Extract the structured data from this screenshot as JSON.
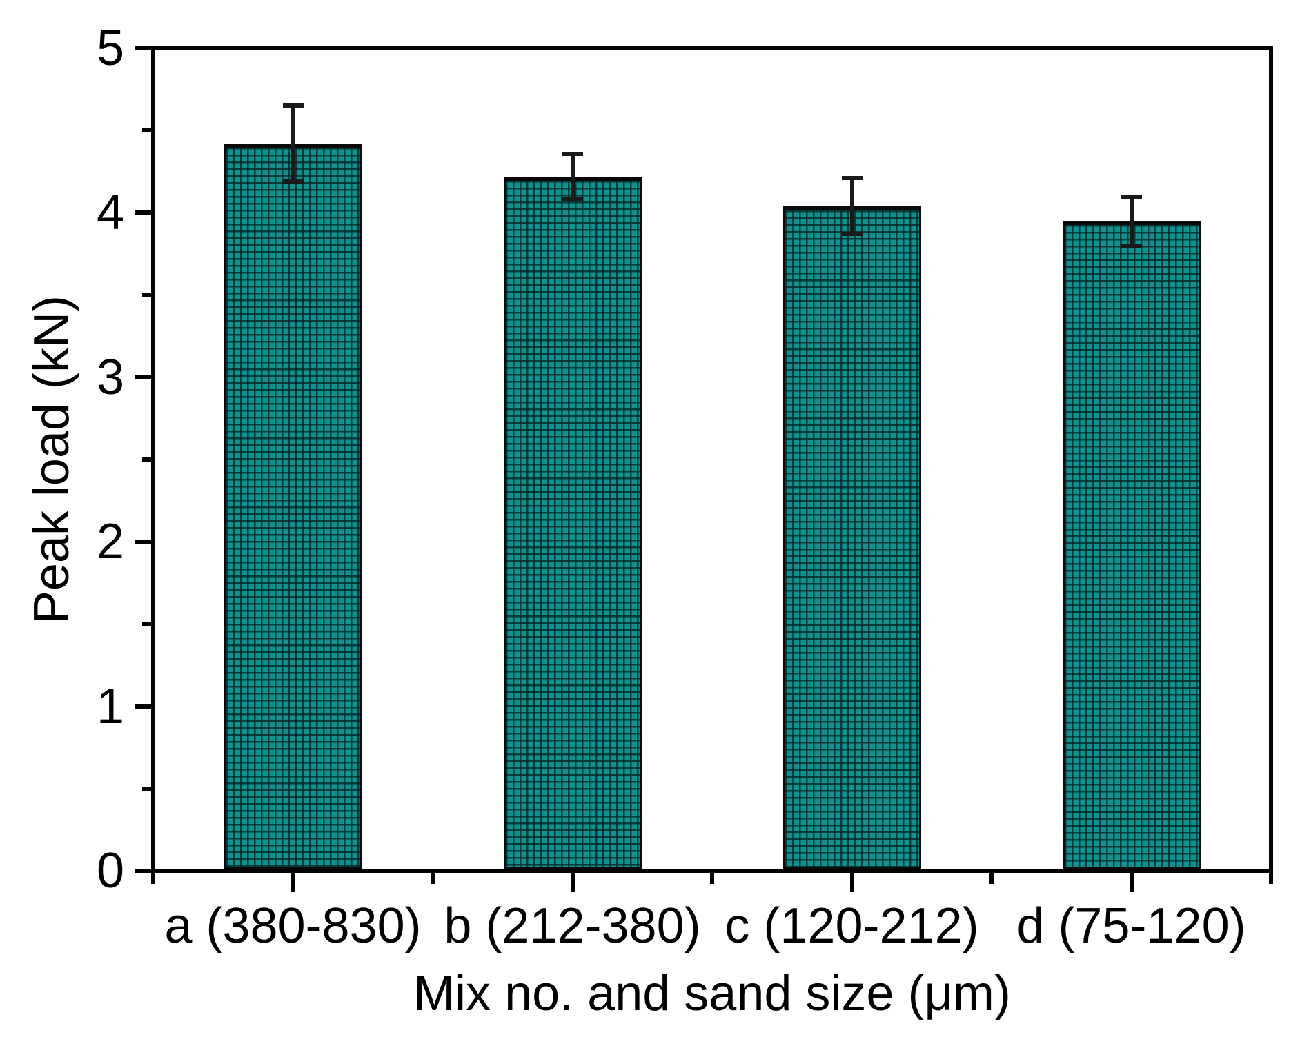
{
  "figure": {
    "background": "#ffffff"
  },
  "chart_data": {
    "type": "bar",
    "title": "",
    "xlabel": "Mix no. and sand size (μm)",
    "ylabel": "Peak load (kN)",
    "categories": [
      "a (380-830)",
      "b (212-380)",
      "c (120-212)",
      "d (75-120)"
    ],
    "series": [
      {
        "name": "Peak load",
        "values": [
          4.42,
          4.22,
          4.04,
          3.95
        ],
        "errors": [
          0.23,
          0.14,
          0.17,
          0.15
        ]
      }
    ],
    "ylim": [
      0,
      5
    ],
    "yticks": [
      0,
      1,
      2,
      3,
      4,
      5
    ],
    "ytick_labels": [
      "0",
      "1",
      "2",
      "3",
      "4",
      "5"
    ],
    "minor_tick_step": 0.5,
    "grid": false,
    "legend": "none",
    "bar_fill": "#0F918F",
    "bar_hatch": "rgba(3,40,40,0.8)",
    "bar_border": "#0A0A0A",
    "axis_color": "#000000",
    "error_color": "#1A1A1A"
  }
}
